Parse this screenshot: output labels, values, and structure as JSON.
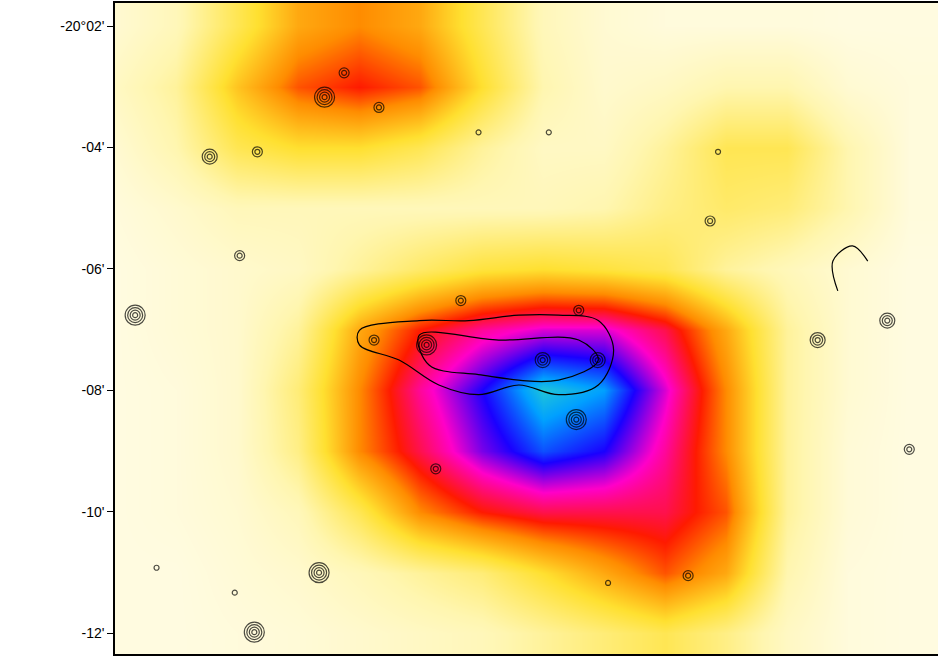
{
  "chart_data": {
    "type": "heatmap",
    "tick_labels": "y",
    "grid": false,
    "xlim": [
      0,
      13.47
    ],
    "ylim": [
      -12.34,
      -1.62
    ],
    "yticks": [
      {
        "value": -2,
        "label": "-20°02'"
      },
      {
        "value": -4,
        "label": "-04'"
      },
      {
        "value": -6,
        "label": "-06'"
      },
      {
        "value": -8,
        "label": "-08'"
      },
      {
        "value": -10,
        "label": "-10'"
      },
      {
        "value": -12,
        "label": "-12'"
      }
    ],
    "color_range": [
      0,
      10
    ],
    "heatmap": {
      "x": [
        0,
        1,
        2,
        3,
        4,
        5,
        6,
        7,
        8,
        9,
        10,
        11,
        12,
        13
      ],
      "y": [
        -2,
        -3,
        -4,
        -5,
        -6,
        -7,
        -8,
        -9,
        -10,
        -11,
        -12
      ],
      "z": [
        [
          0.5,
          1,
          2.5,
          4,
          4.5,
          4,
          2.5,
          1,
          0.5,
          0.3,
          0.3,
          0.3,
          0.2,
          0.2
        ],
        [
          0.8,
          1.5,
          3.5,
          5,
          5.5,
          5,
          3,
          1.2,
          0.6,
          0.8,
          1.2,
          1.2,
          0.5,
          0.3
        ],
        [
          0.5,
          1.2,
          2.5,
          3,
          3,
          2.5,
          1.5,
          0.8,
          0.8,
          1.5,
          2.5,
          2.5,
          1.2,
          0.3
        ],
        [
          0.3,
          0.6,
          1,
          1,
          1,
          1,
          1,
          1,
          1.2,
          1.8,
          2.2,
          2.0,
          1.2,
          0.3
        ],
        [
          0.2,
          0.4,
          0.6,
          0.8,
          1.5,
          2.2,
          2.8,
          3,
          2.8,
          2.5,
          1.5,
          1,
          0.5,
          0.2
        ],
        [
          0.2,
          0.4,
          0.6,
          1.5,
          4,
          5.5,
          6.5,
          7,
          7,
          6,
          4,
          1.5,
          0.5,
          0.2
        ],
        [
          0.2,
          0.3,
          0.6,
          2,
          4.5,
          6.5,
          8,
          9.5,
          9,
          7,
          4.5,
          1.5,
          0.5,
          0.2
        ],
        [
          0.2,
          0.3,
          0.6,
          1.8,
          4.5,
          6,
          7.5,
          8.5,
          8,
          6.5,
          4.5,
          1.5,
          0.4,
          0.2
        ],
        [
          0.2,
          0.3,
          0.5,
          1,
          2.5,
          4.5,
          5.5,
          6,
          6,
          6,
          5,
          1.5,
          0.4,
          0.2
        ],
        [
          0.2,
          0.2,
          0.4,
          0.6,
          1,
          1.5,
          2,
          3,
          4,
          5,
          4,
          1.2,
          0.3,
          0.2
        ],
        [
          0.2,
          0.2,
          0.3,
          0.4,
          0.6,
          0.8,
          1,
          1.5,
          2,
          2.5,
          1.8,
          0.8,
          0.3,
          0.2
        ]
      ]
    },
    "contours": {
      "sources": [
        {
          "x": 3.43,
          "y": -3.17,
          "levels": 4
        },
        {
          "x": 3.75,
          "y": -2.77,
          "levels": 2
        },
        {
          "x": 4.32,
          "y": -3.34,
          "levels": 2
        },
        {
          "x": 1.55,
          "y": -4.15,
          "levels": 3
        },
        {
          "x": 2.33,
          "y": -4.07,
          "levels": 2
        },
        {
          "x": 0.33,
          "y": -6.76,
          "levels": 4
        },
        {
          "x": 2.04,
          "y": -5.78,
          "levels": 2
        },
        {
          "x": 5.66,
          "y": -6.52,
          "levels": 2
        },
        {
          "x": 7.59,
          "y": -6.68,
          "levels": 2
        },
        {
          "x": 9.74,
          "y": -5.21,
          "levels": 2
        },
        {
          "x": 11.5,
          "y": -7.17,
          "levels": 3
        },
        {
          "x": 12.64,
          "y": -6.85,
          "levels": 3
        },
        {
          "x": 5.1,
          "y": -7.25,
          "levels": 4
        },
        {
          "x": 7.0,
          "y": -7.5,
          "levels": 3
        },
        {
          "x": 7.9,
          "y": -7.5,
          "levels": 3
        },
        {
          "x": 7.55,
          "y": -8.48,
          "levels": 4
        },
        {
          "x": 3.34,
          "y": -11.0,
          "levels": 4
        },
        {
          "x": 2.28,
          "y": -11.98,
          "levels": 4
        },
        {
          "x": 9.38,
          "y": -11.05,
          "levels": 2
        },
        {
          "x": 5.25,
          "y": -9.29,
          "levels": 2
        },
        {
          "x": 4.24,
          "y": -7.17,
          "levels": 2
        },
        {
          "x": 7.1,
          "y": -3.75,
          "levels": 1
        },
        {
          "x": 5.95,
          "y": -3.75,
          "levels": 1
        },
        {
          "x": 1.96,
          "y": -11.33,
          "levels": 1
        },
        {
          "x": 0.68,
          "y": -10.92,
          "levels": 1
        },
        {
          "x": 13.0,
          "y": -8.97,
          "levels": 2
        },
        {
          "x": 9.87,
          "y": -4.07,
          "levels": 1
        },
        {
          "x": 8.07,
          "y": -11.17,
          "levels": 1
        }
      ],
      "paths": [
        [
          [
            4.0,
            -7.01
          ],
          [
            4.98,
            -6.85
          ],
          [
            5.79,
            -6.85
          ],
          [
            6.61,
            -6.76
          ],
          [
            7.26,
            -6.76
          ],
          [
            7.91,
            -6.85
          ],
          [
            8.16,
            -7.33
          ],
          [
            7.91,
            -7.91
          ],
          [
            7.26,
            -8.07
          ],
          [
            6.61,
            -7.91
          ],
          [
            5.95,
            -8.07
          ],
          [
            5.3,
            -7.91
          ],
          [
            4.65,
            -7.5
          ],
          [
            4.0,
            -7.25
          ],
          [
            4.0,
            -7.01
          ]
        ],
        [
          [
            4.98,
            -7.09
          ],
          [
            6.28,
            -7.17
          ],
          [
            7.59,
            -7.17
          ],
          [
            7.91,
            -7.5
          ],
          [
            7.26,
            -7.83
          ],
          [
            5.95,
            -7.74
          ],
          [
            5.14,
            -7.58
          ],
          [
            4.98,
            -7.09
          ]
        ],
        [
          [
            11.83,
            -6.36
          ],
          [
            11.75,
            -5.87
          ],
          [
            12.07,
            -5.62
          ],
          [
            12.32,
            -5.87
          ]
        ]
      ]
    }
  }
}
